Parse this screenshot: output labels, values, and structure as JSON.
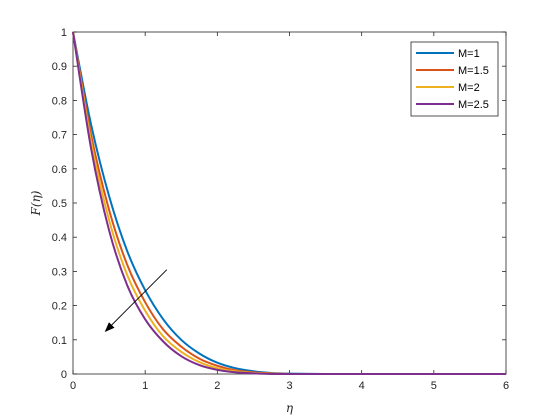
{
  "chart_data": {
    "type": "line",
    "xlabel": "η",
    "ylabel": "F(η)",
    "xlim": [
      0,
      6
    ],
    "ylim": [
      0,
      1
    ],
    "xticks": [
      0,
      1,
      2,
      3,
      4,
      5,
      6
    ],
    "yticks": [
      0,
      0.1,
      0.2,
      0.3,
      0.4,
      0.5,
      0.6,
      0.7,
      0.8,
      0.9,
      1
    ],
    "grid": false,
    "legend_position": "top-right",
    "x": [
      0,
      0.25,
      0.5,
      0.75,
      1.0,
      1.25,
      1.5,
      1.75,
      2.0,
      2.25,
      2.5,
      2.75,
      3.0,
      3.5,
      4.0,
      4.5,
      5.0,
      5.5,
      6.0
    ],
    "series": [
      {
        "name": "M=1",
        "color": "#0072BD",
        "values": [
          1.0,
          0.73,
          0.52,
          0.36,
          0.245,
          0.16,
          0.1,
          0.06,
          0.033,
          0.017,
          0.008,
          0.003,
          0.001,
          0.0,
          0.0,
          0.0,
          0.0,
          0.0,
          0.0
        ]
      },
      {
        "name": "M=1.5",
        "color": "#D95319",
        "values": [
          1.0,
          0.7,
          0.48,
          0.32,
          0.21,
          0.13,
          0.08,
          0.045,
          0.024,
          0.011,
          0.005,
          0.002,
          0.0,
          0.0,
          0.0,
          0.0,
          0.0,
          0.0,
          0.0
        ]
      },
      {
        "name": "M=2",
        "color": "#EDB120",
        "values": [
          1.0,
          0.68,
          0.45,
          0.29,
          0.185,
          0.11,
          0.065,
          0.035,
          0.017,
          0.008,
          0.003,
          0.001,
          0.0,
          0.0,
          0.0,
          0.0,
          0.0,
          0.0,
          0.0
        ]
      },
      {
        "name": "M=2.5",
        "color": "#7E2F8E",
        "values": [
          1.0,
          0.66,
          0.42,
          0.26,
          0.16,
          0.095,
          0.052,
          0.026,
          0.012,
          0.005,
          0.002,
          0.0,
          0.0,
          0.0,
          0.0,
          0.0,
          0.0,
          0.0,
          0.0
        ]
      }
    ],
    "annotation": {
      "type": "arrow",
      "from": [
        1.3,
        0.305
      ],
      "to": [
        0.45,
        0.125
      ],
      "color": "#000000"
    }
  }
}
